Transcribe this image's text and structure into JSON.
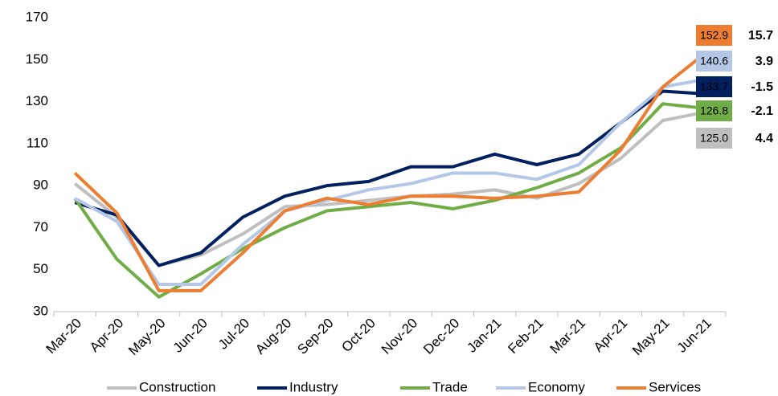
{
  "chart_data": {
    "type": "line",
    "categories": [
      "Mar-20",
      "Apr-20",
      "May-20",
      "Jun-20",
      "Jul-20",
      "Aug-20",
      "Sep-20",
      "Oct-20",
      "Nov-20",
      "Dec-20",
      "Jan-21",
      "Feb-21",
      "Mar-21",
      "Apr-21",
      "May-21",
      "Jun-21"
    ],
    "series": [
      {
        "name": "Construction",
        "color": "#bfbfbf",
        "values": [
          91,
          75,
          52,
          57,
          67,
          80,
          81,
          83,
          85,
          86,
          88,
          84,
          91,
          103,
          121,
          125.0
        ],
        "value_labels": [
          null,
          null,
          null,
          null,
          null,
          null,
          null,
          null,
          null,
          null,
          null,
          null,
          null,
          null,
          null,
          "125.0"
        ],
        "change": 4.4
      },
      {
        "name": "Industry",
        "color": "#002060",
        "values": [
          82,
          76,
          52,
          58,
          75,
          85,
          90,
          92,
          99,
          99,
          105,
          100,
          105,
          120,
          135,
          133.7
        ],
        "value_labels": [
          null,
          null,
          null,
          null,
          null,
          null,
          null,
          null,
          null,
          null,
          null,
          null,
          null,
          null,
          null,
          "133.7"
        ],
        "change": -1.5
      },
      {
        "name": "Trade",
        "color": "#70ad47",
        "values": [
          84,
          55,
          37,
          48,
          60,
          70,
          78,
          80,
          82,
          79,
          83,
          89,
          96,
          108,
          129,
          126.8
        ],
        "value_labels": [
          null,
          null,
          null,
          null,
          null,
          null,
          null,
          null,
          null,
          null,
          null,
          null,
          null,
          null,
          null,
          "126.8"
        ],
        "change": -2.1
      },
      {
        "name": "Economy",
        "color": "#b4c7e7",
        "values": [
          84,
          73,
          43,
          43,
          62,
          78,
          83,
          88,
          91,
          96,
          96,
          93,
          100,
          120,
          137,
          140.6
        ],
        "value_labels": [
          null,
          null,
          null,
          null,
          null,
          null,
          null,
          null,
          null,
          null,
          null,
          null,
          null,
          null,
          null,
          "140.6"
        ],
        "change": 3.9
      },
      {
        "name": "Services",
        "color": "#ed7d31",
        "values": [
          96,
          77,
          40,
          40,
          58,
          78,
          84,
          81,
          85,
          85,
          84,
          85,
          87,
          107,
          137,
          152.9
        ],
        "value_labels": [
          null,
          null,
          null,
          null,
          null,
          null,
          null,
          null,
          null,
          null,
          null,
          null,
          null,
          null,
          null,
          "152.9"
        ],
        "change": 15.7
      }
    ],
    "ylim": [
      30,
      170
    ],
    "yticks": [
      30,
      50,
      70,
      90,
      110,
      130,
      150,
      170
    ],
    "grid": false,
    "legend": "bottom"
  }
}
